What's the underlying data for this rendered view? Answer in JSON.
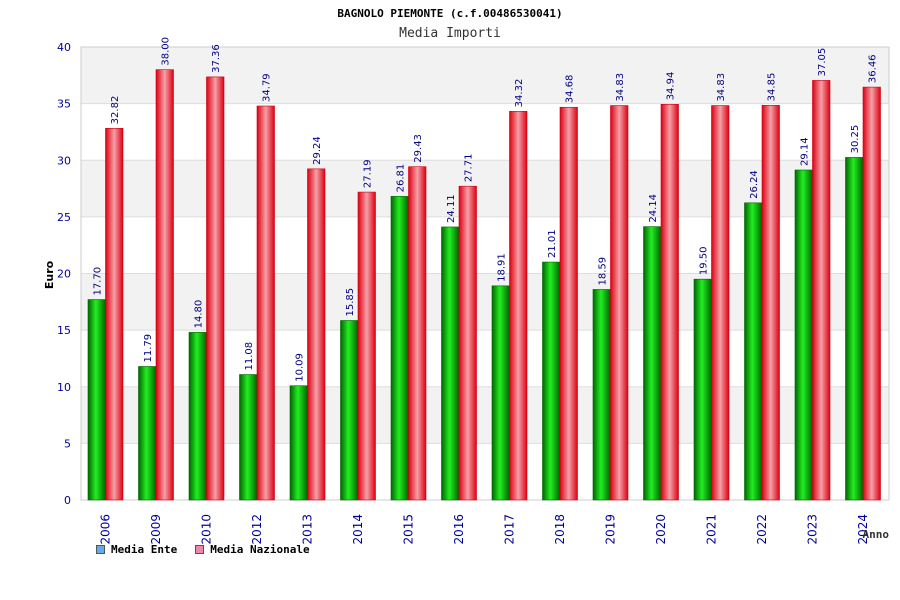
{
  "chart_data": {
    "type": "bar",
    "title": "BAGNOLO PIEMONTE (c.f.00486530041)",
    "subtitle": "Media Importi",
    "ylabel": "Euro",
    "xlabel": "Anno",
    "ylim": [
      0,
      40
    ],
    "yticks": [
      0,
      5,
      10,
      15,
      20,
      25,
      30,
      35,
      40
    ],
    "categories": [
      "2006",
      "2009",
      "2010",
      "2012",
      "2013",
      "2014",
      "2015",
      "2016",
      "2017",
      "2018",
      "2019",
      "2020",
      "2021",
      "2022",
      "2023",
      "2024"
    ],
    "series": [
      {
        "name": "Media Ente",
        "color": "#00bb00",
        "values": [
          17.7,
          11.79,
          14.8,
          11.08,
          10.09,
          15.85,
          26.81,
          24.11,
          18.91,
          21.01,
          18.59,
          24.14,
          19.5,
          26.24,
          29.14,
          30.25
        ],
        "labels": [
          "17.70",
          "11.79",
          "14.80",
          "11.08",
          "10.09",
          "15.85",
          "26.81",
          "24.11",
          "18.91",
          "21.01",
          "18.59",
          "24.14",
          "19.50",
          "26.24",
          "29.14",
          "30.25"
        ]
      },
      {
        "name": "Media Nazionale",
        "color": "#ee1122",
        "values": [
          32.82,
          38.0,
          37.36,
          34.79,
          29.24,
          27.19,
          29.43,
          27.71,
          34.32,
          34.68,
          34.83,
          34.94,
          34.83,
          34.85,
          37.05,
          36.46
        ],
        "labels": [
          "32.82",
          "38.00",
          "37.36",
          "34.79",
          "29.24",
          "27.19",
          "29.43",
          "27.71",
          "34.32",
          "34.68",
          "34.83",
          "34.94",
          "34.83",
          "34.85",
          "37.05",
          "36.46"
        ]
      }
    ],
    "grid": true,
    "legend_position": "bottom-left",
    "legend": [
      {
        "label": "Media Ente",
        "swatch_color": "#66aaee"
      },
      {
        "label": "Media Nazionale",
        "swatch_color": "#ee88aa"
      }
    ]
  }
}
